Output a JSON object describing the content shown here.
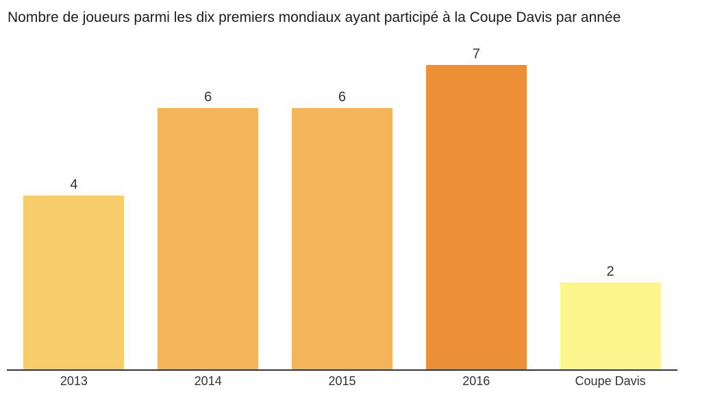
{
  "chart_data": {
    "type": "bar",
    "title": "Nombre de joueurs parmi les dix premiers mondiaux ayant participé à la Coupe Davis par année",
    "categories": [
      "2013",
      "2014",
      "2015",
      "2016",
      "Coupe Davis"
    ],
    "values": [
      4,
      6,
      6,
      7,
      2
    ],
    "value_labels": [
      "4",
      "6",
      "6",
      "7",
      "2"
    ],
    "bar_colors": [
      "#f8cb69",
      "#f4b45a",
      "#f4b45a",
      "#ec9037",
      "#fcf58d"
    ],
    "xlabel": "",
    "ylabel": "",
    "ylim": [
      0,
      7.5
    ],
    "grid": false,
    "legend": "none",
    "axis_line_color": "#333333",
    "label_color": "#333333",
    "title_color": "#1c1c1c",
    "background": "#ffffff"
  }
}
